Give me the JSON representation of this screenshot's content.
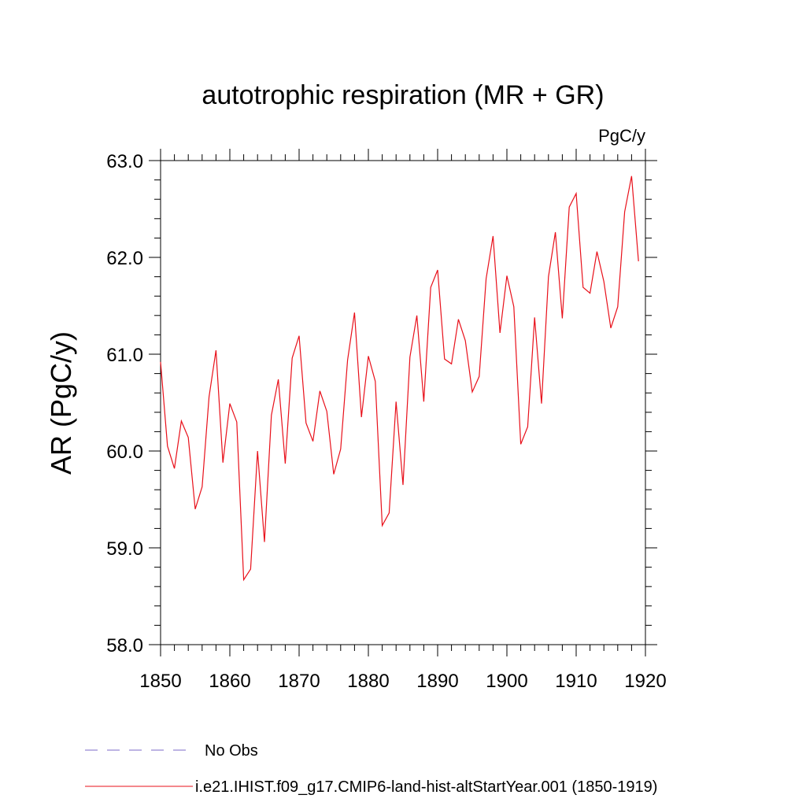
{
  "chart_data": {
    "type": "line",
    "title": "autotrophic respiration (MR + GR)",
    "units_label": "PgC/y",
    "ylabel": "AR  (PgC/y)",
    "xlabel": "",
    "xlim": [
      1850,
      1920
    ],
    "ylim": [
      58.0,
      63.0
    ],
    "x_ticks": [
      1850,
      1860,
      1870,
      1880,
      1890,
      1900,
      1910,
      1920
    ],
    "y_ticks": [
      58.0,
      59.0,
      60.0,
      61.0,
      62.0,
      63.0
    ],
    "y_tick_labels": [
      "58.0",
      "59.0",
      "60.0",
      "61.0",
      "62.0",
      "63.0"
    ],
    "grid": false,
    "legend_position": "bottom-left",
    "series": [
      {
        "name": "i.e21.IHIST.f09_g17.CMIP6-land-hist-altStartYear.001 (1850-1919)",
        "color": "#e8101a",
        "style": "solid",
        "x": [
          1850,
          1851,
          1852,
          1853,
          1854,
          1855,
          1856,
          1857,
          1858,
          1859,
          1860,
          1861,
          1862,
          1863,
          1864,
          1865,
          1866,
          1867,
          1868,
          1869,
          1870,
          1871,
          1872,
          1873,
          1874,
          1875,
          1876,
          1877,
          1878,
          1879,
          1880,
          1881,
          1882,
          1883,
          1884,
          1885,
          1886,
          1887,
          1888,
          1889,
          1890,
          1891,
          1892,
          1893,
          1894,
          1895,
          1896,
          1897,
          1898,
          1899,
          1900,
          1901,
          1902,
          1903,
          1904,
          1905,
          1906,
          1907,
          1908,
          1909,
          1910,
          1911,
          1912,
          1913,
          1914,
          1915,
          1916,
          1917,
          1918,
          1919
        ],
        "values": [
          60.92,
          60.05,
          59.82,
          60.31,
          60.14,
          59.4,
          59.63,
          60.56,
          61.04,
          59.88,
          60.49,
          60.3,
          58.67,
          58.78,
          60.0,
          59.06,
          60.37,
          60.74,
          59.87,
          60.96,
          61.19,
          60.29,
          60.1,
          60.62,
          60.41,
          59.76,
          60.02,
          60.94,
          61.43,
          60.35,
          60.98,
          60.72,
          59.23,
          59.36,
          60.51,
          59.65,
          60.97,
          61.4,
          60.51,
          61.69,
          61.87,
          60.95,
          60.9,
          61.36,
          61.14,
          60.61,
          60.77,
          61.78,
          62.22,
          61.22,
          61.81,
          61.49,
          60.07,
          60.25,
          61.38,
          60.49,
          61.8,
          62.26,
          61.37,
          62.52,
          62.66,
          61.69,
          61.63,
          62.06,
          61.75,
          61.27,
          61.49,
          62.47,
          62.84,
          61.96
        ]
      },
      {
        "name": "No Obs",
        "color": "#7b68c8",
        "style": "dashed",
        "values": []
      }
    ]
  }
}
